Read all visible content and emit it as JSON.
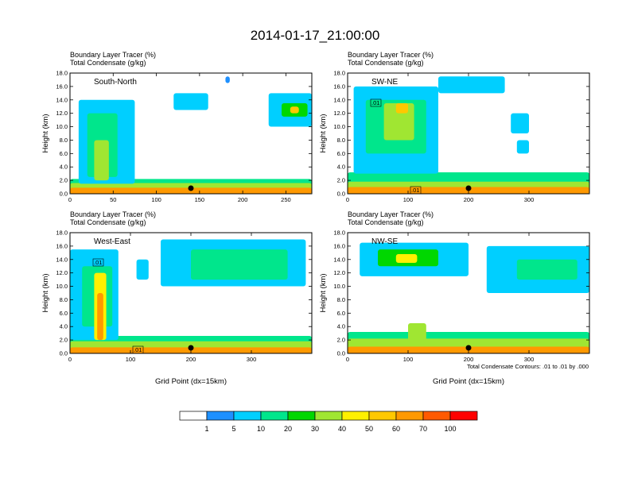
{
  "title": "2014-01-17_21:00:00",
  "chart_data": [
    {
      "type": "heatmap",
      "panel": "South-North",
      "subtitle_lines": [
        "Boundary Layer Tracer   (%)",
        "Total Condensate   (g/kg)"
      ],
      "label": "South-North",
      "xlabel": "",
      "ylabel": "Height (km)",
      "xlim": [
        0,
        280
      ],
      "ylim": [
        0,
        18
      ],
      "x_ticks": [
        "0",
        "50",
        "100",
        "150",
        "200",
        "250"
      ],
      "y_ticks": [
        "0.0",
        "2.0",
        "4.0",
        "6.0",
        "8.0",
        "10.0",
        "12.0",
        "14.0",
        "16.0",
        "18.0"
      ],
      "marker_x": 140,
      "contour_labels": [],
      "regions": [
        {
          "cat": 3,
          "x0": 0,
          "x1": 280,
          "y0": 0,
          "y1": 2.2
        },
        {
          "cat": 5,
          "x0": 0,
          "x1": 280,
          "y0": 0,
          "y1": 1.6
        },
        {
          "cat": 8,
          "x0": 0,
          "x1": 280,
          "y0": 0,
          "y1": 0.9
        },
        {
          "cat": 2,
          "x0": 10,
          "x1": 75,
          "y0": 1.5,
          "y1": 14
        },
        {
          "cat": 3,
          "x0": 20,
          "x1": 55,
          "y0": 2.5,
          "y1": 12
        },
        {
          "cat": 5,
          "x0": 28,
          "x1": 45,
          "y0": 2,
          "y1": 8
        },
        {
          "cat": 2,
          "x0": 230,
          "x1": 280,
          "y0": 10,
          "y1": 15
        },
        {
          "cat": 4,
          "x0": 245,
          "x1": 275,
          "y0": 11.5,
          "y1": 13.5
        },
        {
          "cat": 7,
          "x0": 255,
          "x1": 265,
          "y0": 12,
          "y1": 13
        },
        {
          "cat": 2,
          "x0": 120,
          "x1": 160,
          "y0": 12.5,
          "y1": 15
        },
        {
          "cat": 1,
          "x0": 180,
          "x1": 185,
          "y0": 16.5,
          "y1": 17.5
        }
      ]
    },
    {
      "type": "heatmap",
      "panel": "SW-NE",
      "subtitle_lines": [
        "Boundary Layer Tracer   (%)",
        "Total Condensate   (g/kg)"
      ],
      "label": "SW-NE",
      "xlabel": "",
      "ylabel": "Height (km)",
      "xlim": [
        0,
        400
      ],
      "ylim": [
        0,
        18
      ],
      "x_ticks": [
        "0",
        "100",
        "200",
        "300"
      ],
      "y_ticks": [
        "0.0",
        "2.0",
        "4.0",
        "6.0",
        "8.0",
        "10.0",
        "12.0",
        "14.0",
        "16.0",
        "18.0"
      ],
      "marker_x": 200,
      "contour_labels": [
        ".01",
        ".01"
      ],
      "regions": [
        {
          "cat": 3,
          "x0": 0,
          "x1": 400,
          "y0": 0,
          "y1": 3.2
        },
        {
          "cat": 5,
          "x0": 0,
          "x1": 400,
          "y0": 0,
          "y1": 1.8
        },
        {
          "cat": 8,
          "x0": 0,
          "x1": 400,
          "y0": 0,
          "y1": 1.0
        },
        {
          "cat": 2,
          "x0": 10,
          "x1": 150,
          "y0": 3,
          "y1": 16
        },
        {
          "cat": 3,
          "x0": 30,
          "x1": 130,
          "y0": 6,
          "y1": 14
        },
        {
          "cat": 5,
          "x0": 60,
          "x1": 110,
          "y0": 8,
          "y1": 13.5
        },
        {
          "cat": 7,
          "x0": 80,
          "x1": 100,
          "y0": 12,
          "y1": 13.5
        },
        {
          "cat": 2,
          "x0": 150,
          "x1": 260,
          "y0": 15,
          "y1": 17.5
        },
        {
          "cat": 2,
          "x0": 270,
          "x1": 300,
          "y0": 9,
          "y1": 12
        },
        {
          "cat": 2,
          "x0": 280,
          "x1": 300,
          "y0": 6,
          "y1": 8
        }
      ]
    },
    {
      "type": "heatmap",
      "panel": "West-East",
      "subtitle_lines": [
        "Boundary Layer Tracer   (%)",
        "Total Condensate   (g/kg)"
      ],
      "label": "West-East",
      "xlabel": "Grid Point (dx=15km)",
      "ylabel": "Height (km)",
      "xlim": [
        0,
        400
      ],
      "ylim": [
        0,
        18
      ],
      "x_ticks": [
        "0",
        "100",
        "200",
        "300"
      ],
      "y_ticks": [
        "0.0",
        "2.0",
        "4.0",
        "6.0",
        "8.0",
        "10.0",
        "12.0",
        "14.0",
        "16.0",
        "18.0"
      ],
      "marker_x": 200,
      "contour_labels": [
        ".01",
        ".01"
      ],
      "regions": [
        {
          "cat": 3,
          "x0": 0,
          "x1": 400,
          "y0": 0,
          "y1": 2.6
        },
        {
          "cat": 5,
          "x0": 0,
          "x1": 400,
          "y0": 0,
          "y1": 1.8
        },
        {
          "cat": 8,
          "x0": 0,
          "x1": 400,
          "y0": 0,
          "y1": 0.9
        },
        {
          "cat": 2,
          "x0": 0,
          "x1": 80,
          "y0": 2,
          "y1": 15.5
        },
        {
          "cat": 3,
          "x0": 20,
          "x1": 70,
          "y0": 4,
          "y1": 13
        },
        {
          "cat": 6,
          "x0": 40,
          "x1": 60,
          "y0": 2,
          "y1": 12
        },
        {
          "cat": 8,
          "x0": 45,
          "x1": 55,
          "y0": 2,
          "y1": 9
        },
        {
          "cat": 2,
          "x0": 150,
          "x1": 390,
          "y0": 10,
          "y1": 17
        },
        {
          "cat": 3,
          "x0": 200,
          "x1": 360,
          "y0": 11,
          "y1": 15.5
        },
        {
          "cat": 2,
          "x0": 110,
          "x1": 130,
          "y0": 11,
          "y1": 14
        }
      ]
    },
    {
      "type": "heatmap",
      "panel": "NW-SE",
      "subtitle_lines": [
        "Boundary Layer Tracer   (%)",
        "Total Condensate   (g/kg)"
      ],
      "label": "NW-SE",
      "xlabel": "Grid Point (dx=15km)",
      "ylabel": "Height (km)",
      "xlim": [
        0,
        400
      ],
      "ylim": [
        0,
        18
      ],
      "x_ticks": [
        "0",
        "100",
        "200",
        "300"
      ],
      "y_ticks": [
        "0.0",
        "2.0",
        "4.0",
        "6.0",
        "8.0",
        "10.0",
        "12.0",
        "14.0",
        "16.0",
        "18.0"
      ],
      "marker_x": 200,
      "contour_labels": [],
      "regions": [
        {
          "cat": 3,
          "x0": 0,
          "x1": 400,
          "y0": 0,
          "y1": 3.2
        },
        {
          "cat": 5,
          "x0": 0,
          "x1": 400,
          "y0": 0,
          "y1": 2.2
        },
        {
          "cat": 8,
          "x0": 0,
          "x1": 400,
          "y0": 0,
          "y1": 1.0
        },
        {
          "cat": 2,
          "x0": 20,
          "x1": 200,
          "y0": 11.5,
          "y1": 16.5
        },
        {
          "cat": 4,
          "x0": 50,
          "x1": 150,
          "y0": 13,
          "y1": 15.5
        },
        {
          "cat": 6,
          "x0": 80,
          "x1": 115,
          "y0": 13.5,
          "y1": 14.8
        },
        {
          "cat": 2,
          "x0": 230,
          "x1": 400,
          "y0": 9,
          "y1": 16
        },
        {
          "cat": 3,
          "x0": 280,
          "x1": 380,
          "y0": 11,
          "y1": 14
        },
        {
          "cat": 5,
          "x0": 100,
          "x1": 130,
          "y0": 1,
          "y1": 4.5
        }
      ]
    }
  ],
  "contour_note": "Total Condensate Contours: .01 to .01 by .000",
  "legend": {
    "labels": [
      "1",
      "5",
      "10",
      "20",
      "30",
      "40",
      "50",
      "60",
      "70",
      "100"
    ],
    "colors": [
      "#ffffff",
      "#1e90ff",
      "#00cfff",
      "#00e68c",
      "#00d700",
      "#a0e632",
      "#fff000",
      "#ffc800",
      "#ff9900",
      "#ff5a00",
      "#ff0000"
    ]
  }
}
